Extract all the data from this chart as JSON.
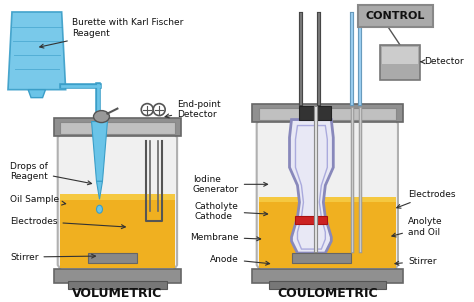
{
  "bg_color": "#ffffff",
  "title_vol": "VOLUMETRIC",
  "title_coul": "COULOMETRIC",
  "control_label": "CONTROL",
  "colors": {
    "burette_blue": "#6ac4e8",
    "burette_dark": "#3a9ec8",
    "vessel_fill_gold": "#f0b020",
    "vessel_fill_light": "#f5c840",
    "vessel_glass": "#f0f0f0",
    "vessel_glass_edge": "#b0b0b0",
    "metal_collar": "#909090",
    "metal_collar_light": "#c0c0c0",
    "metal_base": "#888888",
    "electrode_dark": "#444444",
    "inner_vessel_fill": "#e8e8f5",
    "inner_vessel_edge": "#8888bb",
    "inner_vessel_edge2": "#aaaadd",
    "membrane_red": "#cc2222",
    "cathode_tube": "#999999",
    "cathode_tube_light": "#cccccc",
    "drop_blue": "#6ac4e8",
    "text_dark": "#111111",
    "control_bg": "#aaaaaa",
    "control_edge": "#888888",
    "detector_bg": "#999999",
    "arrow_color": "#333333",
    "stirrer_bar": "#888888"
  }
}
